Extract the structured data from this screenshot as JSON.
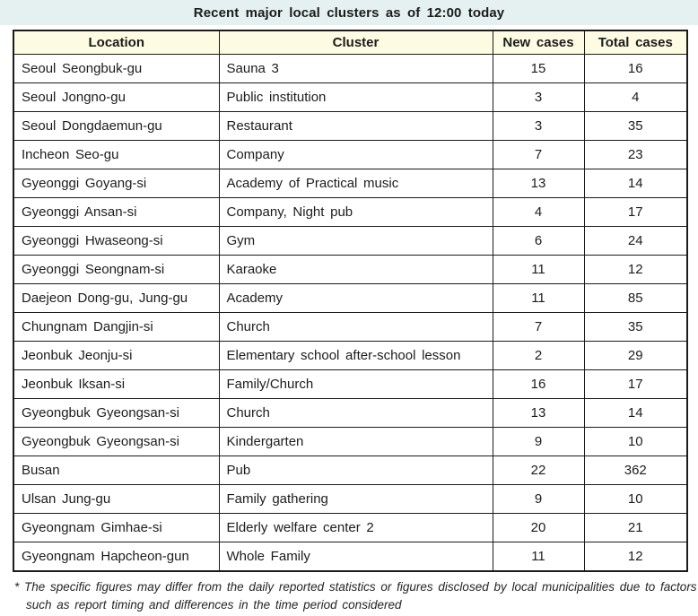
{
  "title": "Recent major local clusters as of 12:00 today",
  "colors": {
    "title_band_bg": "#e4f1f0",
    "header_bg": "#fdfce3",
    "border": "#1b1b1b"
  },
  "table": {
    "headers": [
      "Location",
      "Cluster",
      "New cases",
      "Total cases"
    ],
    "rows": [
      [
        "Seoul Seongbuk-gu",
        "Sauna 3",
        "15",
        "16"
      ],
      [
        "Seoul Jongno-gu",
        "Public institution",
        "3",
        "4"
      ],
      [
        "Seoul Dongdaemun-gu",
        "Restaurant",
        "3",
        "35"
      ],
      [
        "Incheon Seo-gu",
        "Company",
        "7",
        "23"
      ],
      [
        "Gyeonggi Goyang-si",
        "Academy of Practical music",
        "13",
        "14"
      ],
      [
        "Gyeonggi Ansan-si",
        "Company, Night pub",
        "4",
        "17"
      ],
      [
        "Gyeonggi Hwaseong-si",
        "Gym",
        "6",
        "24"
      ],
      [
        "Gyeonggi Seongnam-si",
        "Karaoke",
        "11",
        "12"
      ],
      [
        "Daejeon Dong-gu, Jung-gu",
        "Academy",
        "11",
        "85"
      ],
      [
        "Chungnam Dangjin-si",
        "Church",
        "7",
        "35"
      ],
      [
        "Jeonbuk Jeonju-si",
        "Elementary school after-school lesson",
        "2",
        "29"
      ],
      [
        "Jeonbuk Iksan-si",
        "Family/Church",
        "16",
        "17"
      ],
      [
        "Gyeongbuk Gyeongsan-si",
        "Church",
        "13",
        "14"
      ],
      [
        "Gyeongbuk Gyeongsan-si",
        "Kindergarten",
        "9",
        "10"
      ],
      [
        "Busan",
        "Pub",
        "22",
        "362"
      ],
      [
        "Ulsan Jung-gu",
        "Family gathering",
        "9",
        "10"
      ],
      [
        "Gyeongnam Gimhae-si",
        "Elderly welfare center 2",
        "20",
        "21"
      ],
      [
        "Gyeongnam Hapcheon-gun",
        "Whole Family",
        "11",
        "12"
      ]
    ]
  },
  "footnote": "* The specific figures may differ from the daily reported statistics or figures disclosed by local municipalities due to factors such as report timing and differences in the time period considered",
  "chart_data": {
    "type": "table",
    "title": "Recent major local clusters as of 12:00 today",
    "columns": [
      "Location",
      "Cluster",
      "New cases",
      "Total cases"
    ],
    "rows": [
      {
        "location": "Seoul Seongbuk-gu",
        "cluster": "Sauna 3",
        "new_cases": 15,
        "total_cases": 16
      },
      {
        "location": "Seoul Jongno-gu",
        "cluster": "Public institution",
        "new_cases": 3,
        "total_cases": 4
      },
      {
        "location": "Seoul Dongdaemun-gu",
        "cluster": "Restaurant",
        "new_cases": 3,
        "total_cases": 35
      },
      {
        "location": "Incheon Seo-gu",
        "cluster": "Company",
        "new_cases": 7,
        "total_cases": 23
      },
      {
        "location": "Gyeonggi Goyang-si",
        "cluster": "Academy of Practical music",
        "new_cases": 13,
        "total_cases": 14
      },
      {
        "location": "Gyeonggi Ansan-si",
        "cluster": "Company, Night pub",
        "new_cases": 4,
        "total_cases": 17
      },
      {
        "location": "Gyeonggi Hwaseong-si",
        "cluster": "Gym",
        "new_cases": 6,
        "total_cases": 24
      },
      {
        "location": "Gyeonggi Seongnam-si",
        "cluster": "Karaoke",
        "new_cases": 11,
        "total_cases": 12
      },
      {
        "location": "Daejeon Dong-gu, Jung-gu",
        "cluster": "Academy",
        "new_cases": 11,
        "total_cases": 85
      },
      {
        "location": "Chungnam Dangjin-si",
        "cluster": "Church",
        "new_cases": 7,
        "total_cases": 35
      },
      {
        "location": "Jeonbuk Jeonju-si",
        "cluster": "Elementary school after-school lesson",
        "new_cases": 2,
        "total_cases": 29
      },
      {
        "location": "Jeonbuk Iksan-si",
        "cluster": "Family/Church",
        "new_cases": 16,
        "total_cases": 17
      },
      {
        "location": "Gyeongbuk Gyeongsan-si",
        "cluster": "Church",
        "new_cases": 13,
        "total_cases": 14
      },
      {
        "location": "Gyeongbuk Gyeongsan-si",
        "cluster": "Kindergarten",
        "new_cases": 9,
        "total_cases": 10
      },
      {
        "location": "Busan",
        "cluster": "Pub",
        "new_cases": 22,
        "total_cases": 362
      },
      {
        "location": "Ulsan Jung-gu",
        "cluster": "Family gathering",
        "new_cases": 9,
        "total_cases": 10
      },
      {
        "location": "Gyeongnam Gimhae-si",
        "cluster": "Elderly welfare center 2",
        "new_cases": 20,
        "total_cases": 21
      },
      {
        "location": "Gyeongnam Hapcheon-gun",
        "cluster": "Whole Family",
        "new_cases": 11,
        "total_cases": 12
      }
    ]
  }
}
